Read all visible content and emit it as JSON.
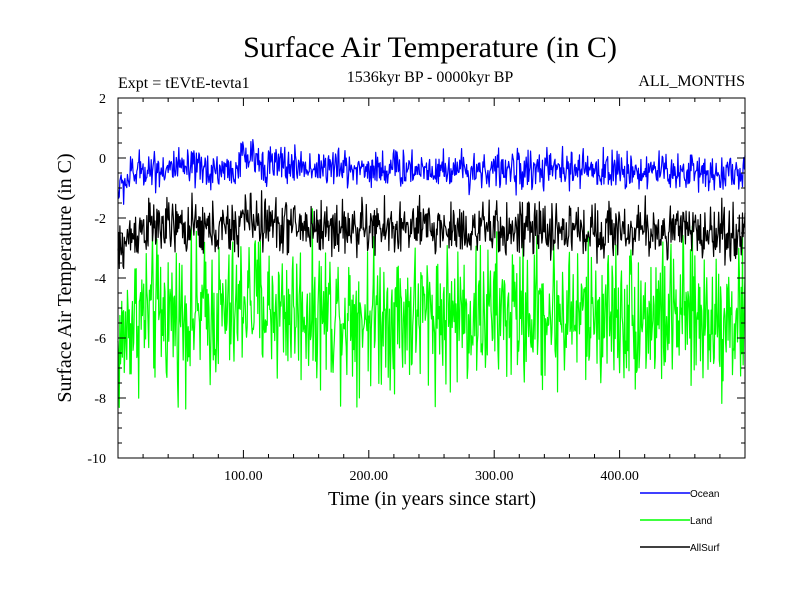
{
  "chart_data": {
    "type": "line",
    "title": "Surface Air Temperature (in C)",
    "subtitle": "1536kyr BP - 0000kyr BP",
    "experiment_label": "Expt = tEVtE-tevta1",
    "months_label": "ALL_MONTHS",
    "xlabel": "Time (in years since start)",
    "ylabel": "Surface Air Temperature (in C)",
    "xlim": [
      0,
      500
    ],
    "ylim": [
      -10,
      2
    ],
    "x_ticks": [
      100,
      200,
      300,
      400
    ],
    "x_tick_labels": [
      "100.00",
      "200.00",
      "300.00",
      "400.00"
    ],
    "y_ticks": [
      2,
      0,
      -2,
      -4,
      -6,
      -8,
      -10
    ],
    "y_tick_labels": [
      "2",
      "0",
      "-2",
      "-4",
      "-6",
      "-8",
      "-10"
    ],
    "series": [
      {
        "name": "Ocean",
        "color": "#0000ff",
        "x": [
          0,
          10,
          20,
          40,
          60,
          80,
          95,
          100,
          105,
          120,
          150,
          200,
          250,
          300,
          350,
          400,
          450,
          500
        ],
        "mean": [
          -1.1,
          -0.6,
          -0.35,
          -0.35,
          -0.4,
          -0.4,
          -0.4,
          0.1,
          0.0,
          -0.2,
          -0.3,
          -0.35,
          -0.35,
          -0.4,
          -0.4,
          -0.4,
          -0.45,
          -0.5
        ],
        "noise_amplitude": 0.35
      },
      {
        "name": "Land",
        "color": "#00ff00",
        "x": [
          0,
          10,
          20,
          40,
          60,
          80,
          95,
          100,
          105,
          120,
          150,
          200,
          250,
          300,
          350,
          400,
          450,
          500
        ],
        "mean": [
          -6.5,
          -5.4,
          -5.2,
          -5.2,
          -5.2,
          -5.2,
          -5.2,
          -4.6,
          -4.7,
          -5.0,
          -5.1,
          -5.2,
          -5.2,
          -5.2,
          -5.2,
          -5.2,
          -5.3,
          -5.3
        ],
        "noise_amplitude": 1.3
      },
      {
        "name": "AllSurf",
        "color": "#000000",
        "x": [
          0,
          10,
          20,
          40,
          60,
          80,
          95,
          100,
          105,
          120,
          150,
          200,
          250,
          300,
          350,
          400,
          450,
          500
        ],
        "mean": [
          -3.2,
          -2.6,
          -2.3,
          -2.3,
          -2.35,
          -2.4,
          -2.4,
          -1.9,
          -2.0,
          -2.2,
          -2.3,
          -2.35,
          -2.35,
          -2.4,
          -2.4,
          -2.4,
          -2.45,
          -2.5
        ],
        "noise_amplitude": 0.5
      }
    ],
    "legend": [
      "Ocean",
      "Land",
      "AllSurf"
    ],
    "legend_position": "bottom-right"
  }
}
